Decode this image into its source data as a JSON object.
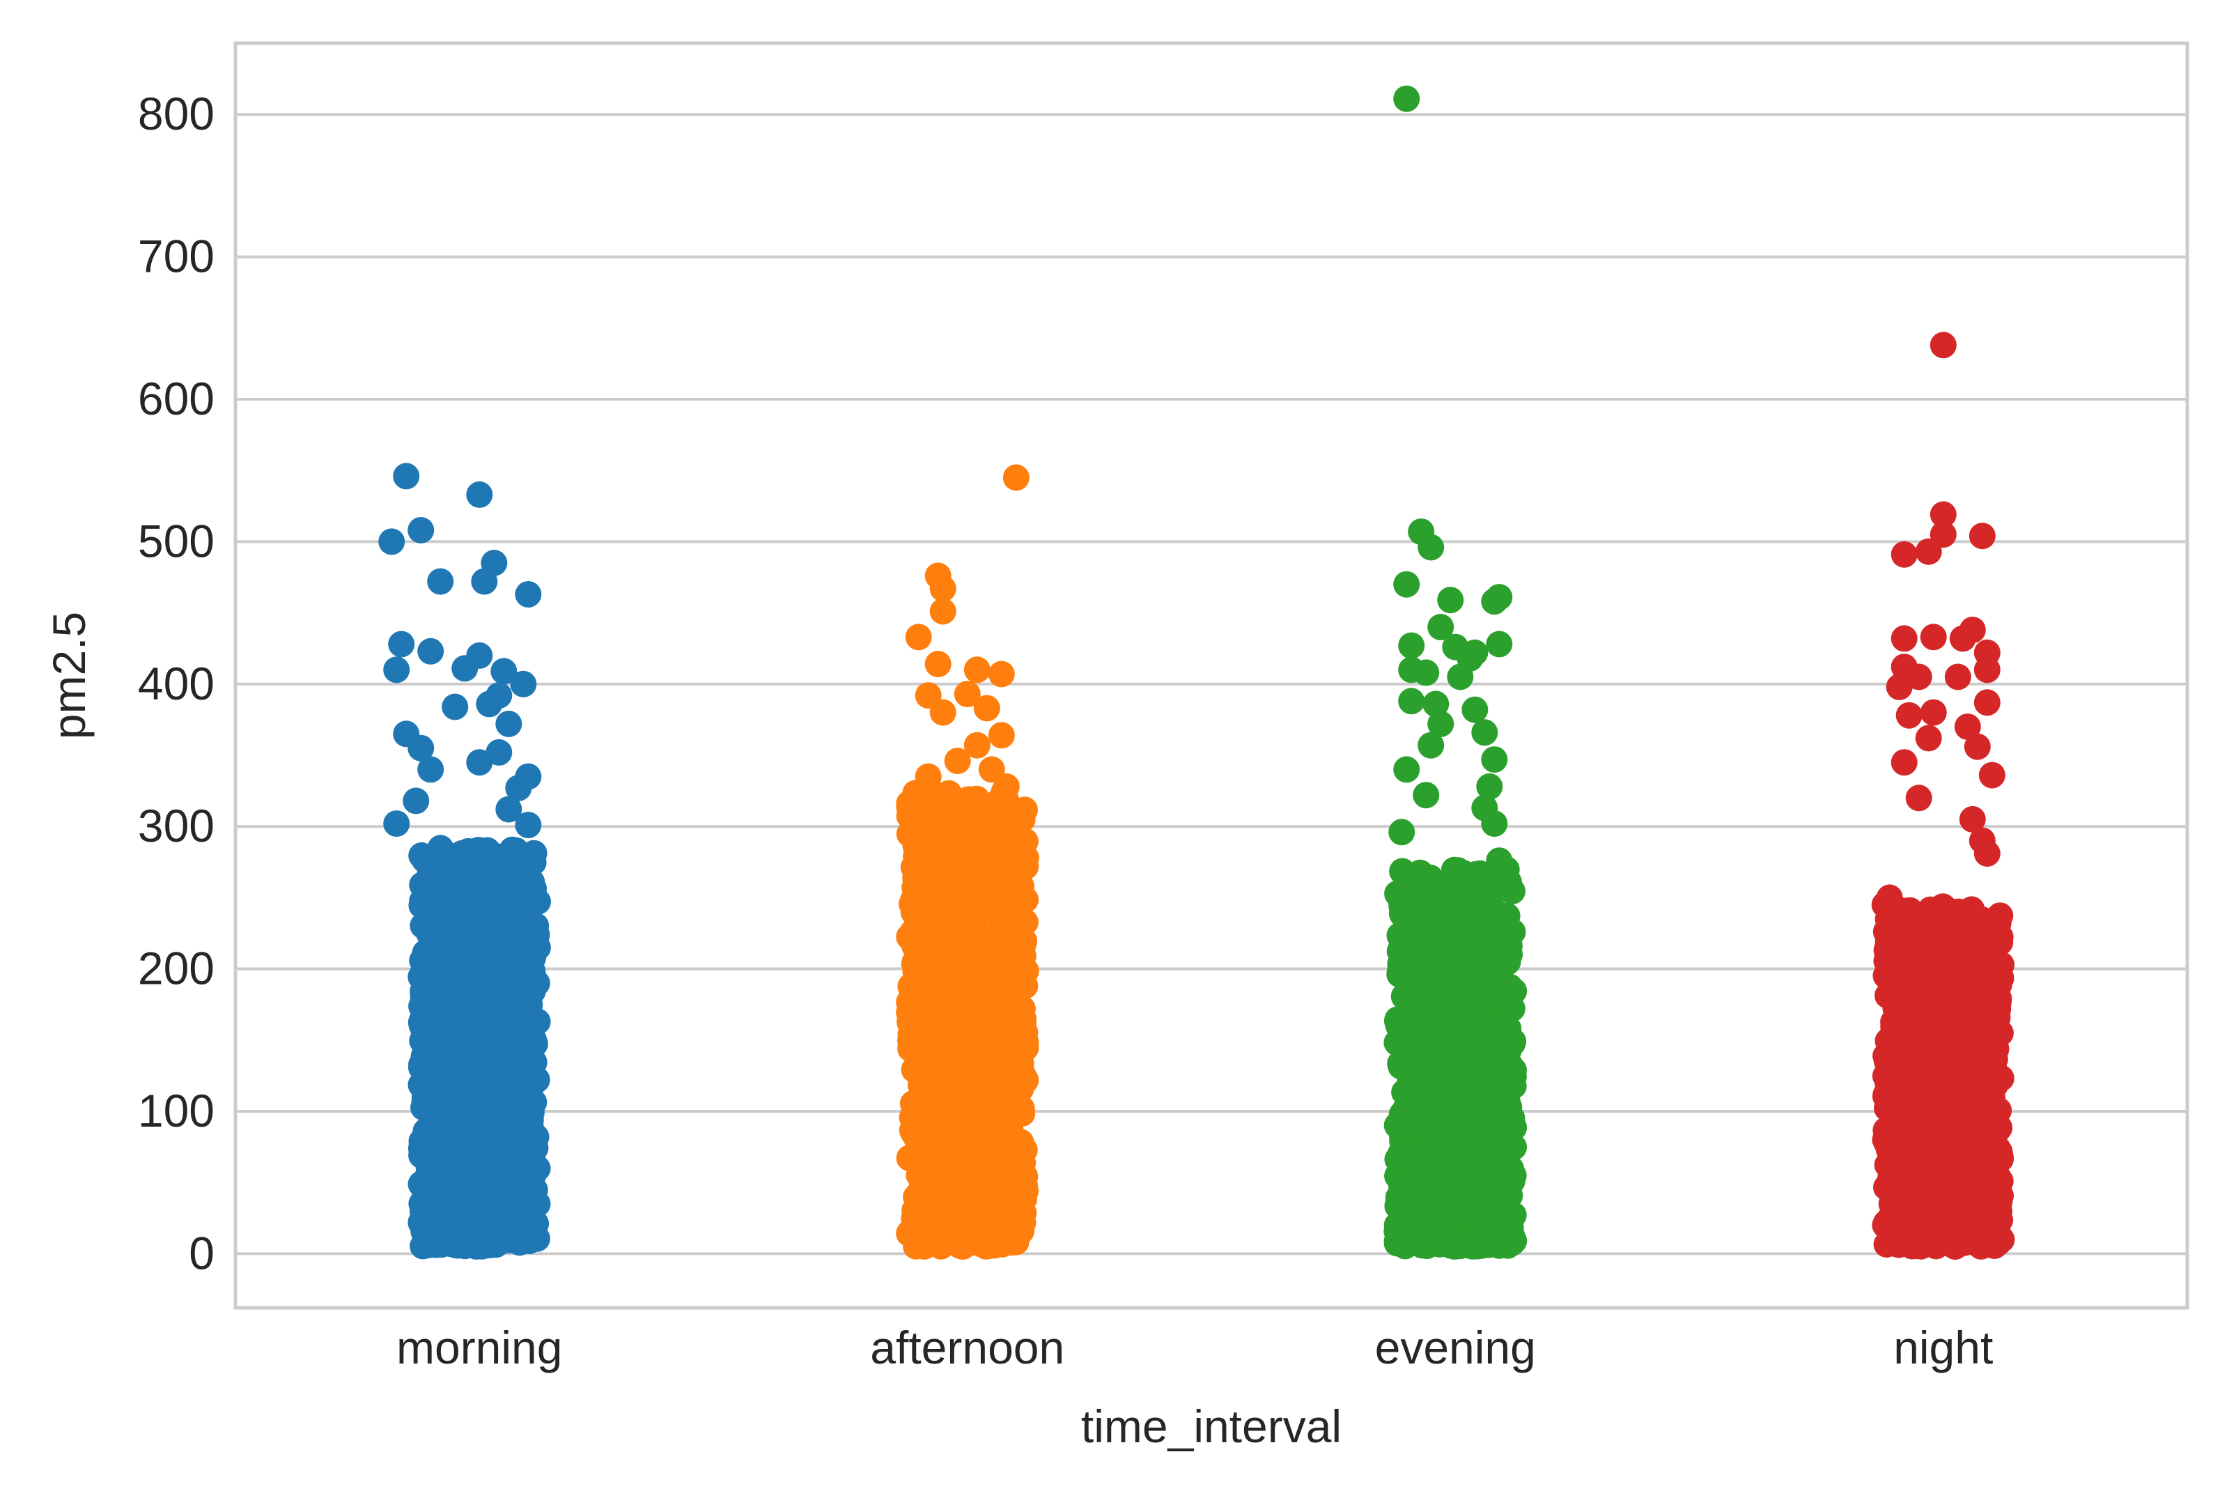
{
  "chart_data": {
    "type": "scatter",
    "subtype": "strip",
    "title": "",
    "xlabel": "time_interval",
    "ylabel": "pm2.5",
    "categories": [
      "morning",
      "afternoon",
      "evening",
      "night"
    ],
    "ylim": [
      -38,
      850
    ],
    "yticks": [
      0,
      100,
      200,
      300,
      400,
      500,
      600,
      700,
      800
    ],
    "grid": "horizontal",
    "legend": "none",
    "colors": [
      "#1f77b4",
      "#ff7f0e",
      "#2ca02c",
      "#d62728"
    ],
    "bulk_max": [
      285,
      325,
      270,
      245
    ],
    "series": [
      {
        "category": "morning",
        "color": "#1f77b4",
        "outliers": [
          {
            "x": -0.15,
            "y": 546
          },
          {
            "x": 0.0,
            "y": 533
          },
          {
            "x": -0.12,
            "y": 508
          },
          {
            "x": -0.18,
            "y": 500
          },
          {
            "x": 0.03,
            "y": 485
          },
          {
            "x": -0.08,
            "y": 472
          },
          {
            "x": 0.01,
            "y": 472
          },
          {
            "x": 0.1,
            "y": 463
          },
          {
            "x": -0.16,
            "y": 428
          },
          {
            "x": -0.1,
            "y": 423
          },
          {
            "x": 0.0,
            "y": 420
          },
          {
            "x": -0.03,
            "y": 411
          },
          {
            "x": -0.17,
            "y": 410
          },
          {
            "x": 0.05,
            "y": 409
          },
          {
            "x": 0.09,
            "y": 400
          },
          {
            "x": 0.04,
            "y": 392
          },
          {
            "x": 0.02,
            "y": 386
          },
          {
            "x": -0.05,
            "y": 384
          },
          {
            "x": 0.06,
            "y": 372
          },
          {
            "x": -0.15,
            "y": 365
          },
          {
            "x": -0.12,
            "y": 355
          },
          {
            "x": 0.0,
            "y": 345
          },
          {
            "x": 0.04,
            "y": 352
          },
          {
            "x": 0.1,
            "y": 335
          },
          {
            "x": -0.1,
            "y": 340
          },
          {
            "x": 0.08,
            "y": 327
          },
          {
            "x": 0.06,
            "y": 312
          },
          {
            "x": 0.1,
            "y": 301
          },
          {
            "x": -0.17,
            "y": 302
          },
          {
            "x": -0.13,
            "y": 318
          }
        ]
      },
      {
        "category": "afternoon",
        "color": "#ff7f0e",
        "outliers": [
          {
            "x": 0.1,
            "y": 545
          },
          {
            "x": -0.06,
            "y": 476
          },
          {
            "x": -0.05,
            "y": 467
          },
          {
            "x": -0.05,
            "y": 451
          },
          {
            "x": -0.1,
            "y": 433
          },
          {
            "x": -0.06,
            "y": 414
          },
          {
            "x": 0.02,
            "y": 410
          },
          {
            "x": 0.07,
            "y": 407
          },
          {
            "x": -0.08,
            "y": 392
          },
          {
            "x": 0.0,
            "y": 393
          },
          {
            "x": 0.04,
            "y": 383
          },
          {
            "x": -0.05,
            "y": 380
          },
          {
            "x": 0.07,
            "y": 364
          },
          {
            "x": 0.02,
            "y": 357
          },
          {
            "x": -0.02,
            "y": 346
          },
          {
            "x": 0.05,
            "y": 340
          },
          {
            "x": -0.08,
            "y": 335
          },
          {
            "x": 0.08,
            "y": 328
          },
          {
            "x": 0.1,
            "y": 305
          },
          {
            "x": 0.1,
            "y": 286
          },
          {
            "x": 0.12,
            "y": 278
          }
        ]
      },
      {
        "category": "evening",
        "color": "#2ca02c",
        "outliers": [
          {
            "x": -0.1,
            "y": 811
          },
          {
            "x": -0.07,
            "y": 507
          },
          {
            "x": -0.05,
            "y": 496
          },
          {
            "x": -0.1,
            "y": 470
          },
          {
            "x": 0.09,
            "y": 461
          },
          {
            "x": 0.08,
            "y": 458
          },
          {
            "x": -0.01,
            "y": 459
          },
          {
            "x": -0.03,
            "y": 440
          },
          {
            "x": -0.09,
            "y": 427
          },
          {
            "x": 0.09,
            "y": 428
          },
          {
            "x": 0.0,
            "y": 426
          },
          {
            "x": 0.04,
            "y": 422
          },
          {
            "x": 0.03,
            "y": 418
          },
          {
            "x": -0.09,
            "y": 410
          },
          {
            "x": -0.06,
            "y": 408
          },
          {
            "x": 0.01,
            "y": 405
          },
          {
            "x": -0.09,
            "y": 388
          },
          {
            "x": -0.04,
            "y": 386
          },
          {
            "x": 0.04,
            "y": 382
          },
          {
            "x": -0.03,
            "y": 372
          },
          {
            "x": 0.06,
            "y": 366
          },
          {
            "x": -0.05,
            "y": 357
          },
          {
            "x": 0.08,
            "y": 347
          },
          {
            "x": -0.1,
            "y": 340
          },
          {
            "x": 0.07,
            "y": 328
          },
          {
            "x": -0.06,
            "y": 322
          },
          {
            "x": 0.06,
            "y": 313
          },
          {
            "x": 0.08,
            "y": 302
          },
          {
            "x": -0.11,
            "y": 296
          },
          {
            "x": 0.09,
            "y": 276
          }
        ]
      },
      {
        "category": "night",
        "color": "#d62728",
        "outliers": [
          {
            "x": 0.0,
            "y": 638
          },
          {
            "x": 0.0,
            "y": 519
          },
          {
            "x": 0.08,
            "y": 504
          },
          {
            "x": 0.0,
            "y": 505
          },
          {
            "x": -0.03,
            "y": 493
          },
          {
            "x": -0.08,
            "y": 491
          },
          {
            "x": 0.06,
            "y": 438
          },
          {
            "x": 0.04,
            "y": 432
          },
          {
            "x": -0.08,
            "y": 432
          },
          {
            "x": -0.02,
            "y": 433
          },
          {
            "x": 0.09,
            "y": 422
          },
          {
            "x": 0.09,
            "y": 410
          },
          {
            "x": -0.08,
            "y": 412
          },
          {
            "x": 0.03,
            "y": 405
          },
          {
            "x": -0.05,
            "y": 405
          },
          {
            "x": -0.09,
            "y": 398
          },
          {
            "x": 0.09,
            "y": 387
          },
          {
            "x": -0.02,
            "y": 380
          },
          {
            "x": -0.07,
            "y": 378
          },
          {
            "x": 0.05,
            "y": 370
          },
          {
            "x": -0.03,
            "y": 362
          },
          {
            "x": 0.07,
            "y": 356
          },
          {
            "x": -0.08,
            "y": 345
          },
          {
            "x": 0.1,
            "y": 336
          },
          {
            "x": -0.05,
            "y": 320
          },
          {
            "x": 0.06,
            "y": 305
          },
          {
            "x": 0.08,
            "y": 290
          },
          {
            "x": 0.09,
            "y": 281
          },
          {
            "x": -0.11,
            "y": 250
          },
          {
            "x": -0.12,
            "y": 245
          }
        ]
      }
    ]
  }
}
